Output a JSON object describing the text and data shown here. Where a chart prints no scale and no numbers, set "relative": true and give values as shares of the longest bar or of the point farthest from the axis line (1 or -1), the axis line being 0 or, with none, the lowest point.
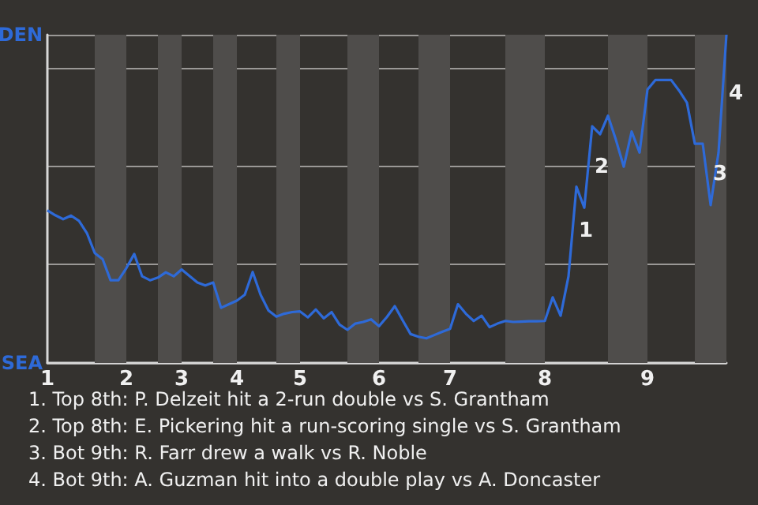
{
  "chart_data": {
    "type": "line",
    "relative": true,
    "categories": [
      "1",
      null,
      null,
      null,
      null,
      null,
      null,
      null,
      null,
      null,
      "2",
      null,
      null,
      null,
      null,
      null,
      null,
      "3",
      null,
      null,
      null,
      null,
      null,
      null,
      "4",
      null,
      null,
      null,
      null,
      null,
      null,
      null,
      "5",
      null,
      null,
      null,
      null,
      null,
      null,
      null,
      null,
      null,
      "6",
      null,
      null,
      null,
      null,
      null,
      null,
      null,
      null,
      "7",
      null,
      null,
      null,
      null,
      null,
      null,
      null,
      null,
      null,
      null,
      null,
      "8",
      null,
      null,
      null,
      null,
      null,
      null,
      null,
      null,
      null,
      null,
      null,
      null,
      "9",
      null,
      null,
      null,
      null,
      null,
      null,
      null,
      null,
      null,
      null
    ],
    "series": [
      {
        "color": "#2e6ad8",
        "values": [
          0.465,
          0.45,
          0.438,
          0.449,
          0.433,
          0.396,
          0.335,
          0.316,
          0.252,
          0.252,
          0.289,
          0.332,
          0.264,
          0.252,
          0.26,
          0.276,
          0.264,
          0.285,
          0.265,
          0.245,
          0.236,
          0.245,
          0.168,
          0.179,
          0.19,
          0.208,
          0.277,
          0.208,
          0.16,
          0.141,
          0.15,
          0.155,
          0.157,
          0.139,
          0.163,
          0.136,
          0.155,
          0.117,
          0.101,
          0.12,
          0.125,
          0.133,
          0.112,
          0.14,
          0.173,
          0.13,
          0.088,
          0.08,
          0.075,
          0.085,
          0.095,
          0.104,
          0.179,
          0.15,
          0.128,
          0.144,
          0.109,
          0.12,
          0.128,
          0.125,
          0.126,
          0.127,
          0.127,
          0.128,
          0.2,
          0.144,
          0.264,
          0.537,
          0.473,
          0.721,
          0.697,
          0.753,
          0.68,
          0.598,
          0.705,
          0.641,
          0.833,
          0.862,
          0.862,
          0.862,
          0.83,
          0.793,
          0.668,
          0.668,
          0.481,
          0.641,
          1
        ]
      }
    ],
    "grid": "y",
    "marker": "none",
    "annotations": [
      "DEN",
      "SEA",
      "1",
      "2",
      "3",
      "4",
      "1. Top 8th: P. Delzeit hit a 2-run double vs S. Grantham",
      "2. Top 8th: E. Pickering hit a run-scoring single vs S. Grantham",
      "3. Bot 9th: R. Farr drew a walk vs R. Noble",
      "4. Bot 9th: A. Guzman hit into a double play vs A. Doncaster"
    ]
  }
}
